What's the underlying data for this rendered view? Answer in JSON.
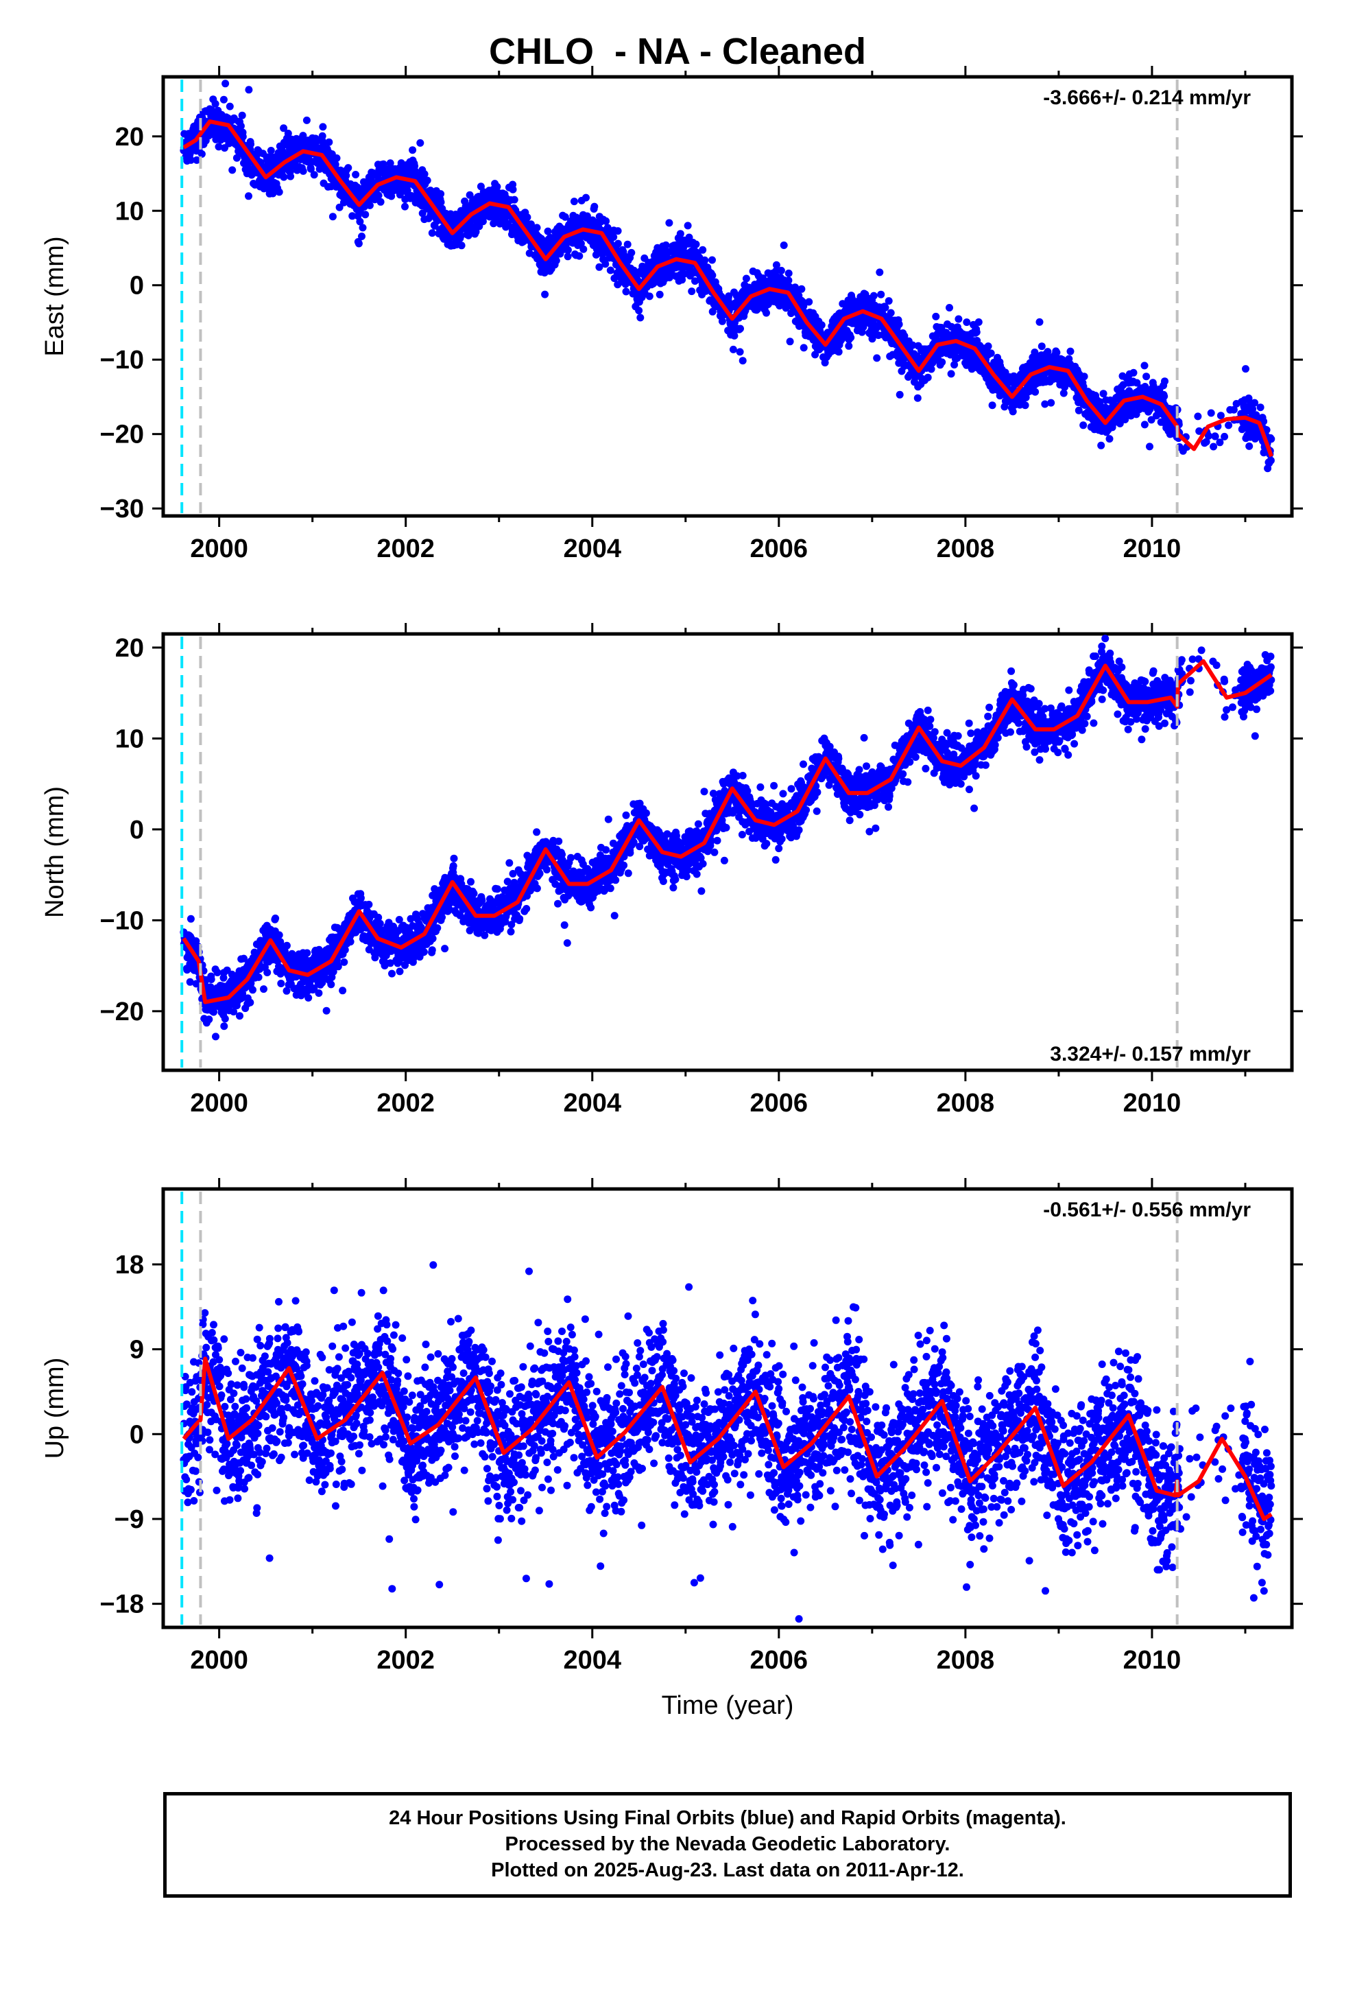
{
  "title": "CHLO  - NA - Cleaned",
  "colors": {
    "points": "#0000ff",
    "model": "#ff0000",
    "cyan_line": "#00e5ff",
    "gray_line": "#c0c0c0"
  },
  "footer": {
    "line1": "24 Hour Positions Using Final Orbits (blue) and Rapid Orbits (magenta).",
    "line2": "Processed by the Nevada Geodetic Laboratory.",
    "line3": "Plotted on 2025-Aug-23. Last data on 2011-Apr-12."
  },
  "chart_data": [
    {
      "type": "scatter",
      "name": "east",
      "ylabel": "East (mm)",
      "xlabel": "",
      "rate_label": "-3.666+/- 0.214 mm/yr",
      "rate_position": "top-right",
      "xlim": [
        1999.4,
        2011.5
      ],
      "ylim": [
        -31,
        28
      ],
      "x_ticks": [
        2000,
        2002,
        2004,
        2006,
        2008,
        2010
      ],
      "y_ticks": [
        -30,
        -20,
        -10,
        0,
        10,
        20
      ],
      "y_tick_labels": [
        "−30",
        "−20",
        "−10",
        "0",
        "10",
        "20"
      ],
      "vlines": [
        {
          "x": 1999.6,
          "color": "cyan"
        },
        {
          "x": 1999.8,
          "color": "gray"
        },
        {
          "x": 2010.27,
          "color": "gray"
        }
      ],
      "model": {
        "x": [
          1999.62,
          1999.75,
          1999.9,
          2000.1,
          2000.3,
          2000.5,
          2000.7,
          2000.9,
          2001.1,
          2001.3,
          2001.5,
          2001.7,
          2001.9,
          2002.1,
          2002.3,
          2002.5,
          2002.7,
          2002.9,
          2003.1,
          2003.3,
          2003.5,
          2003.7,
          2003.9,
          2004.1,
          2004.3,
          2004.5,
          2004.7,
          2004.9,
          2005.1,
          2005.3,
          2005.5,
          2005.7,
          2005.9,
          2006.1,
          2006.3,
          2006.5,
          2006.7,
          2006.9,
          2007.1,
          2007.3,
          2007.5,
          2007.7,
          2007.9,
          2008.1,
          2008.3,
          2008.5,
          2008.7,
          2008.9,
          2009.1,
          2009.3,
          2009.5,
          2009.7,
          2009.9,
          2010.1,
          2010.27,
          2010.28,
          2010.45,
          2010.6,
          2010.8,
          2011.0,
          2011.15,
          2011.28
        ],
        "y": [
          18.5,
          19.5,
          22,
          21.5,
          18,
          14.5,
          16.5,
          18,
          17.5,
          14,
          10.8,
          13.5,
          14.5,
          14,
          10.5,
          7,
          9.5,
          11,
          10.5,
          7,
          3.5,
          6.5,
          7.5,
          7,
          3,
          -0.5,
          2.5,
          3.5,
          3,
          -1,
          -4.5,
          -1.5,
          -0.5,
          -1,
          -5,
          -8,
          -4.5,
          -3.5,
          -4.5,
          -8,
          -11.5,
          -8,
          -7.5,
          -8.5,
          -12,
          -15,
          -12,
          -11,
          -11.5,
          -15.5,
          -18.5,
          -15.5,
          -15,
          -16,
          -19,
          -20,
          -22,
          -19,
          -18,
          -17.8,
          -18.5,
          -23
        ]
      }
    },
    {
      "type": "scatter",
      "name": "north",
      "ylabel": "North (mm)",
      "xlabel": "",
      "rate_label": "3.324+/- 0.157 mm/yr",
      "rate_position": "bottom-right",
      "xlim": [
        1999.4,
        2011.5
      ],
      "ylim": [
        -26.5,
        21.5
      ],
      "x_ticks": [
        2000,
        2002,
        2004,
        2006,
        2008,
        2010
      ],
      "y_ticks": [
        -20,
        -10,
        0,
        10,
        20
      ],
      "y_tick_labels": [
        "−20",
        "−10",
        "0",
        "10",
        "20"
      ],
      "vlines": [
        {
          "x": 1999.6,
          "color": "cyan"
        },
        {
          "x": 1999.8,
          "color": "gray"
        },
        {
          "x": 2010.27,
          "color": "gray"
        }
      ],
      "model": {
        "x": [
          1999.62,
          1999.78,
          1999.85,
          2000.1,
          2000.3,
          2000.55,
          2000.75,
          2000.95,
          2001.2,
          2001.5,
          2001.7,
          2001.95,
          2002.2,
          2002.5,
          2002.75,
          2002.95,
          2003.2,
          2003.5,
          2003.75,
          2003.95,
          2004.2,
          2004.5,
          2004.75,
          2004.95,
          2005.2,
          2005.5,
          2005.75,
          2005.95,
          2006.2,
          2006.5,
          2006.75,
          2006.95,
          2007.2,
          2007.5,
          2007.75,
          2007.95,
          2008.2,
          2008.5,
          2008.75,
          2008.95,
          2009.2,
          2009.5,
          2009.75,
          2009.95,
          2010.2,
          2010.27,
          2010.28,
          2010.55,
          2010.8,
          2011.0,
          2011.28
        ],
        "y": [
          -12,
          -14.5,
          -19,
          -18.5,
          -16.5,
          -12.2,
          -15.5,
          -16,
          -14.5,
          -9,
          -12,
          -13,
          -11.5,
          -5.8,
          -9.5,
          -9.5,
          -8,
          -2.2,
          -6,
          -6,
          -4.5,
          1,
          -2.5,
          -3,
          -1.5,
          4.5,
          1,
          0.5,
          2,
          7.8,
          4,
          4,
          5.5,
          11.2,
          7.5,
          7,
          9,
          14.3,
          11,
          11,
          12.5,
          18,
          14,
          14,
          14.5,
          13.5,
          16,
          18.5,
          14.5,
          15,
          17
        ]
      }
    },
    {
      "type": "scatter",
      "name": "up",
      "ylabel": "Up (mm)",
      "xlabel": "Time (year)",
      "rate_label": "-0.561+/- 0.556 mm/yr",
      "rate_position": "top-right",
      "xlim": [
        1999.4,
        2011.5
      ],
      "ylim": [
        -20.5,
        26
      ],
      "x_ticks": [
        2000,
        2002,
        2004,
        2006,
        2008,
        2010
      ],
      "y_ticks": [
        -18,
        -9,
        0,
        9,
        18
      ],
      "y_tick_labels": [
        "−18",
        "−9",
        "0",
        "9",
        "18"
      ],
      "vlines": [
        {
          "x": 1999.6,
          "color": "cyan"
        },
        {
          "x": 1999.8,
          "color": "gray"
        },
        {
          "x": 2010.27,
          "color": "gray"
        }
      ],
      "model": {
        "x": [
          1999.62,
          1999.75,
          1999.8,
          1999.85,
          2000.1,
          2000.35,
          2000.75,
          2001.05,
          2001.35,
          2001.75,
          2002.05,
          2002.35,
          2002.75,
          2003.05,
          2003.35,
          2003.75,
          2004.05,
          2004.35,
          2004.75,
          2005.05,
          2005.35,
          2005.75,
          2006.05,
          2006.35,
          2006.75,
          2007.05,
          2007.35,
          2007.75,
          2008.05,
          2008.35,
          2008.75,
          2009.05,
          2009.35,
          2009.75,
          2010.05,
          2010.25,
          2010.27,
          2010.28,
          2010.5,
          2010.75,
          2011.0,
          2011.2,
          2011.28
        ],
        "y": [
          -0.5,
          1,
          1.5,
          8,
          -0.5,
          1.5,
          7,
          -0.5,
          1.5,
          6.5,
          -1,
          1,
          6,
          -2,
          0.5,
          5.5,
          -2.5,
          0.2,
          5,
          -3,
          -0.5,
          4.5,
          -3.5,
          -1,
          4,
          -4.5,
          -1.5,
          3.5,
          -5,
          -2,
          2.8,
          -5.5,
          -3,
          2,
          -6,
          -6.5,
          -5,
          -6.5,
          -5,
          -0.5,
          -4.5,
          -9,
          -8.5
        ]
      }
    }
  ]
}
